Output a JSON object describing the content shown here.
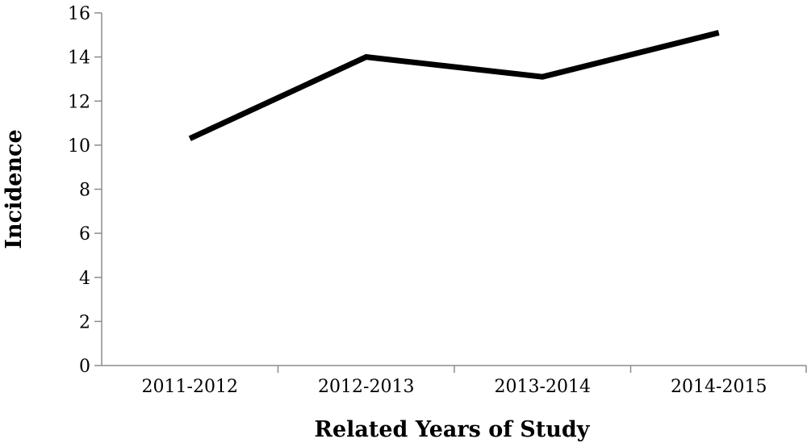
{
  "chart_data": {
    "type": "line",
    "title": "",
    "xlabel": "Related Years of Study",
    "ylabel": "Incidence",
    "categories": [
      "2011-2012",
      "2012-2013",
      "2013-2014",
      "2014-2015"
    ],
    "series": [
      {
        "values": [
          10.3,
          14.0,
          13.1,
          15.1
        ]
      }
    ],
    "ylim": [
      0,
      16
    ],
    "yticks": [
      0,
      2,
      4,
      6,
      8,
      10,
      12,
      14,
      16
    ],
    "grid": false,
    "legend": false,
    "line_color": "#000000",
    "axis_color": "#8c8c8c"
  }
}
